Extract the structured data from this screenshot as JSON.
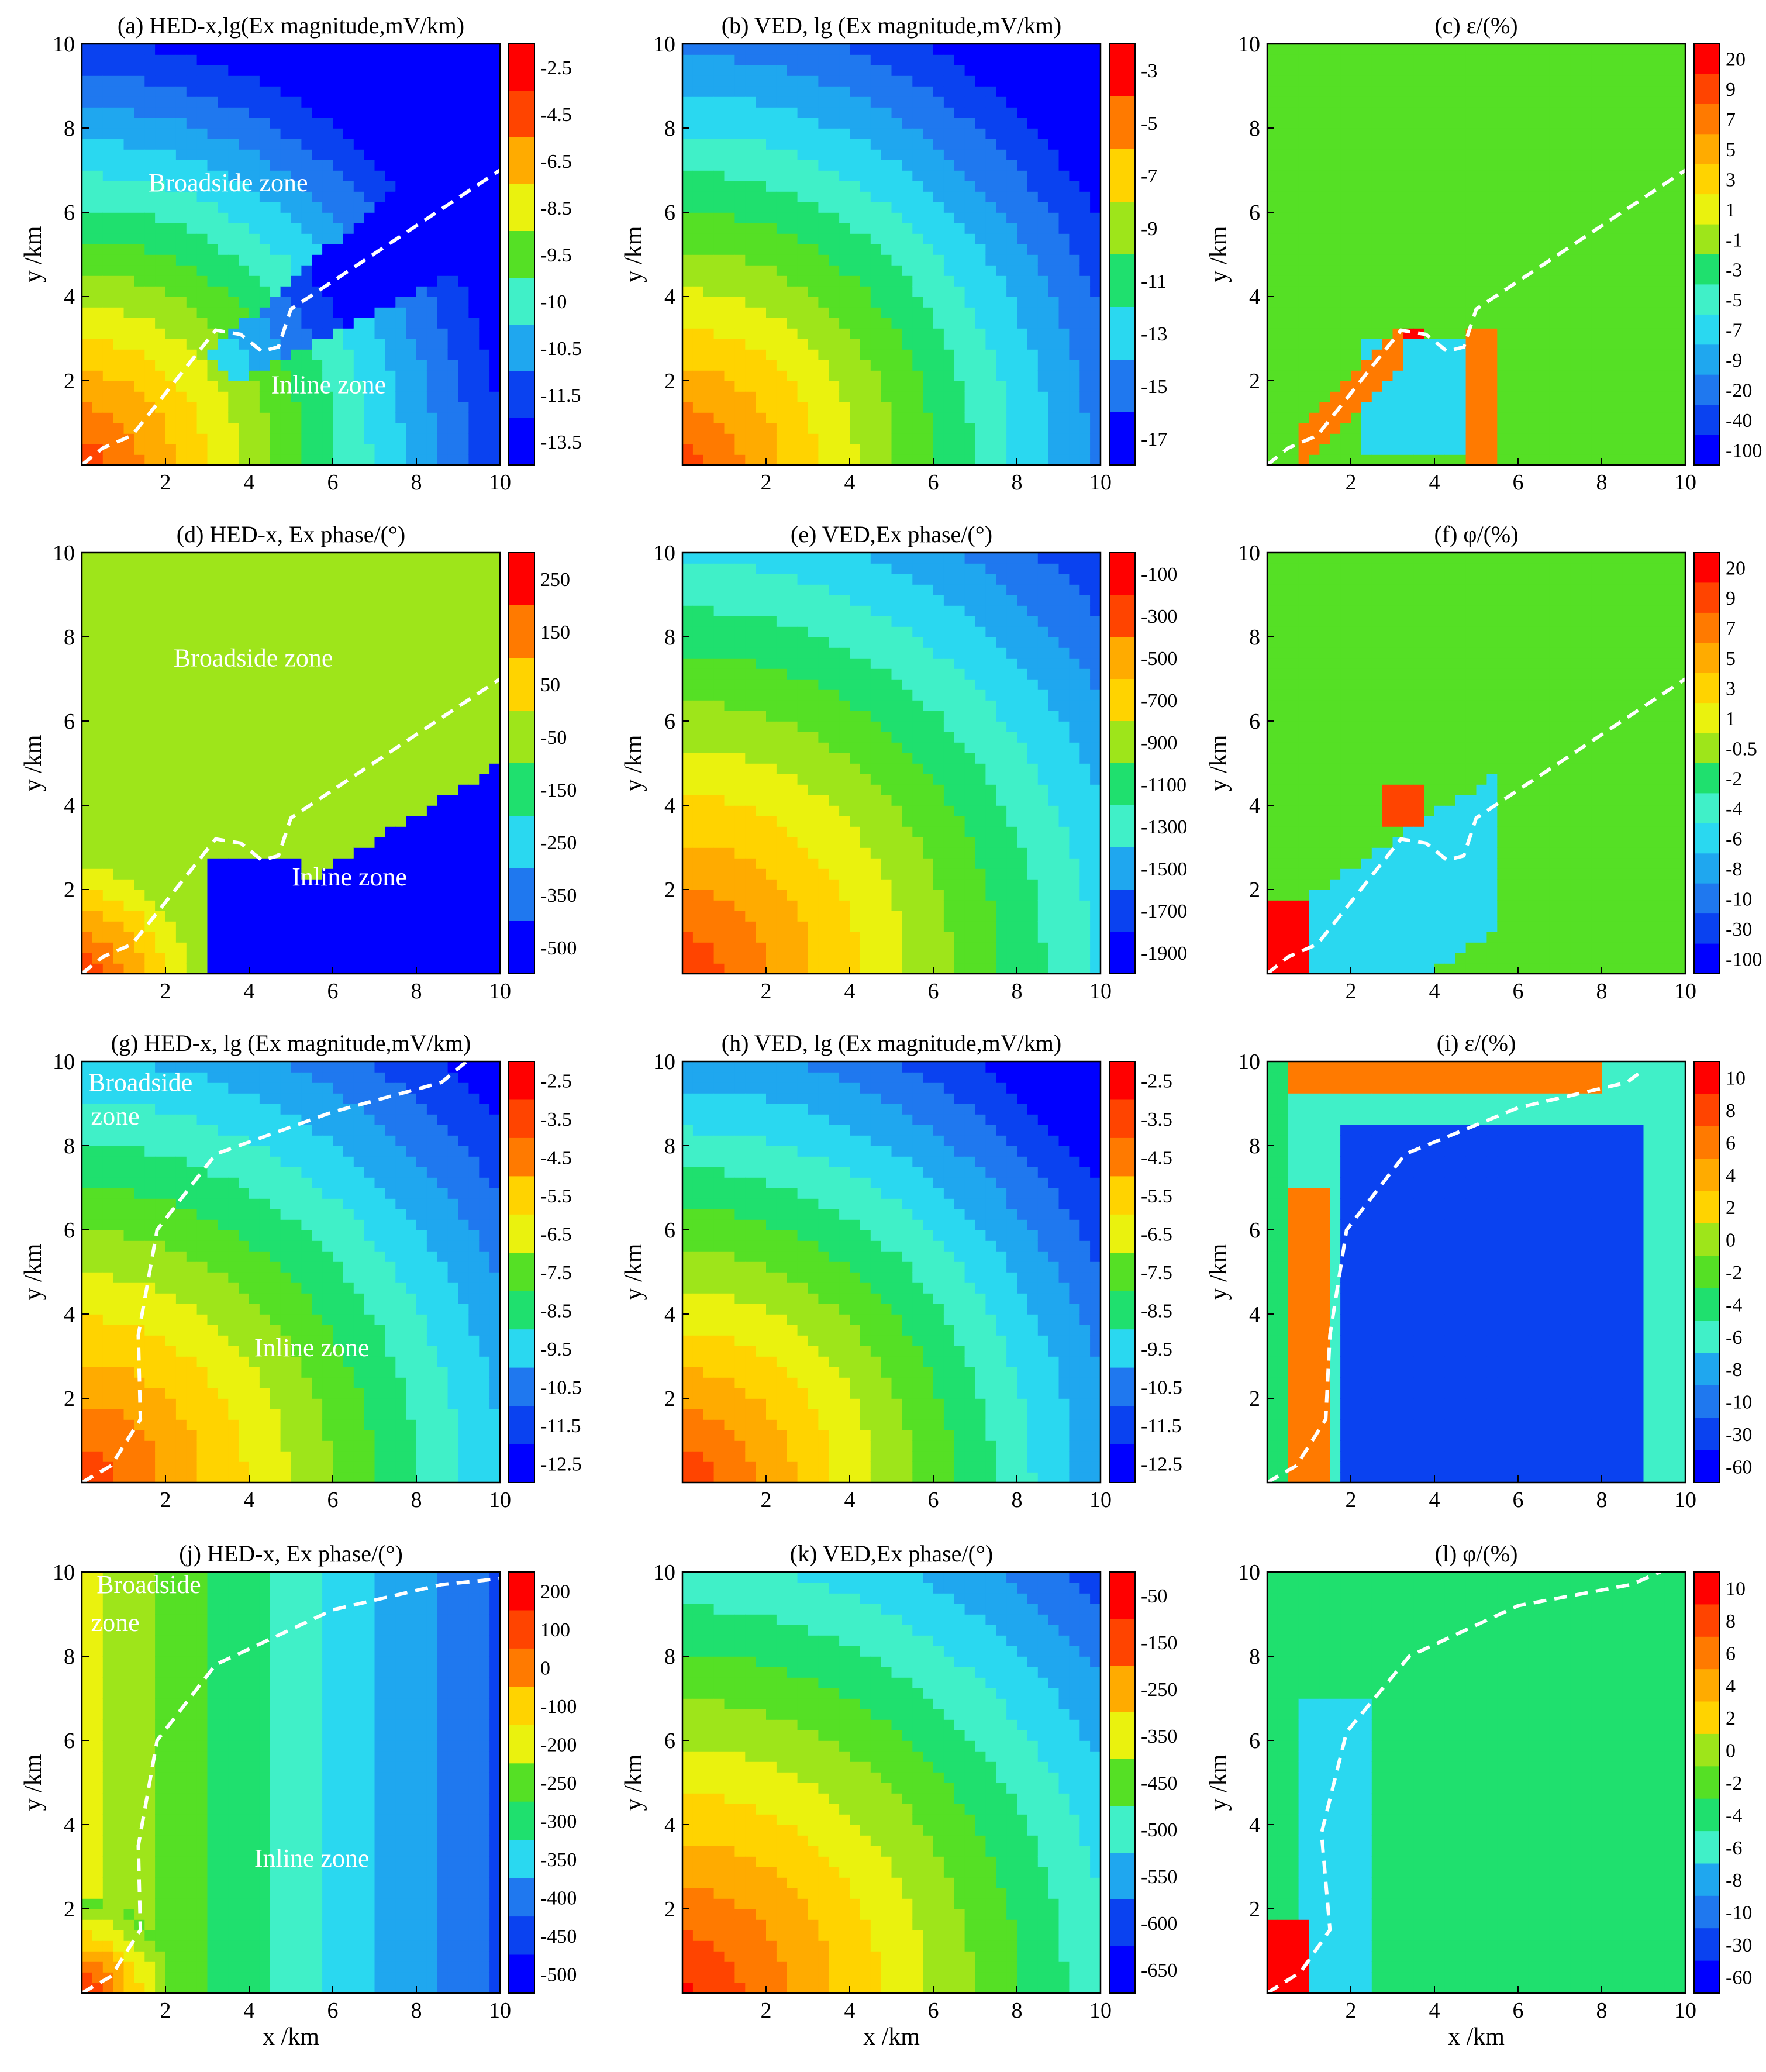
{
  "figure": {
    "x_axis_label": "x /km",
    "y_axis_label": "y /km"
  },
  "chart_data": [
    {
      "id": "a",
      "type": "heatmap",
      "title": "(a) HED-x,lg(Ex magnitude,mV/km)",
      "xlim": [
        0,
        10
      ],
      "ylim": [
        0,
        10
      ],
      "xticks": [
        2,
        4,
        6,
        8,
        10
      ],
      "yticks": [
        2,
        4,
        6,
        8,
        10
      ],
      "x_axis_label": "",
      "y_axis_label": "y /km",
      "colorbar": [
        "-2.5",
        "-4.5",
        "-6.5",
        "-8.5",
        "-9.5",
        "-10",
        "-10.5",
        "-11.5",
        "-13.5"
      ],
      "source": "hed",
      "boundary": [
        [
          0,
          0
        ],
        [
          0.5,
          0.4
        ],
        [
          1.2,
          0.7
        ],
        [
          2,
          1.7
        ],
        [
          3.2,
          3.2
        ],
        [
          3.8,
          3.1
        ],
        [
          4.3,
          2.7
        ],
        [
          4.7,
          2.8
        ],
        [
          5,
          3.7
        ],
        [
          10,
          7.0
        ]
      ],
      "zones": [
        {
          "text": "Broadside zone",
          "x": 3.5,
          "y": 6.5
        },
        {
          "text": "Inline zone",
          "x": 5.9,
          "y": 1.7
        }
      ]
    },
    {
      "id": "b",
      "type": "heatmap",
      "title": "(b) VED, lg (Ex magnitude,mV/km)",
      "xlim": [
        0,
        10
      ],
      "ylim": [
        0,
        10
      ],
      "xticks": [
        2,
        4,
        6,
        8,
        10
      ],
      "yticks": [
        2,
        4,
        6,
        8,
        10
      ],
      "x_axis_label": "",
      "y_axis_label": "y /km",
      "colorbar": [
        "-3",
        "-5",
        "-7",
        "-9",
        "-11",
        "-13",
        "-15",
        "-17"
      ],
      "source": "ved",
      "boundary": [],
      "zones": []
    },
    {
      "id": "c",
      "type": "heatmap",
      "title": "(c) ε/(%)",
      "xlim": [
        0,
        10
      ],
      "ylim": [
        0,
        10
      ],
      "xticks": [
        2,
        4,
        6,
        8,
        10
      ],
      "yticks": [
        2,
        4,
        6,
        8,
        10
      ],
      "x_axis_label": "",
      "y_axis_label": "y /km",
      "colorbar": [
        "20",
        "9",
        "7",
        "5",
        "3",
        "1",
        "-1",
        "-3",
        "-5",
        "-7",
        "-9",
        "-20",
        "-40",
        "-100"
      ],
      "source": "eps",
      "boundary": [
        [
          0,
          0
        ],
        [
          0.5,
          0.4
        ],
        [
          1.2,
          0.7
        ],
        [
          2,
          1.7
        ],
        [
          3.2,
          3.2
        ],
        [
          3.8,
          3.1
        ],
        [
          4.3,
          2.7
        ],
        [
          4.7,
          2.8
        ],
        [
          5,
          3.7
        ],
        [
          10,
          7.0
        ]
      ],
      "zones": []
    },
    {
      "id": "d",
      "type": "heatmap",
      "title": "(d) HED-x, Ex phase/(°)",
      "xlim": [
        0,
        10
      ],
      "ylim": [
        0,
        10
      ],
      "xticks": [
        2,
        4,
        6,
        8,
        10
      ],
      "yticks": [
        2,
        4,
        6,
        8,
        10
      ],
      "x_axis_label": "",
      "y_axis_label": "y /km",
      "colorbar": [
        "250",
        "150",
        "50",
        "-50",
        "-150",
        "-250",
        "-350",
        "-500"
      ],
      "source": "hedphase",
      "boundary": [
        [
          0,
          0
        ],
        [
          0.5,
          0.4
        ],
        [
          1.2,
          0.7
        ],
        [
          2,
          1.7
        ],
        [
          3.2,
          3.2
        ],
        [
          3.8,
          3.1
        ],
        [
          4.3,
          2.7
        ],
        [
          4.7,
          2.8
        ],
        [
          5,
          3.7
        ],
        [
          10,
          7.0
        ]
      ],
      "zones": [
        {
          "text": "Broadside zone",
          "x": 4.1,
          "y": 7.3
        },
        {
          "text": "Inline zone",
          "x": 6.4,
          "y": 2.1
        }
      ]
    },
    {
      "id": "e",
      "type": "heatmap",
      "title": "(e) VED,Ex phase/(°)",
      "xlim": [
        0,
        10
      ],
      "ylim": [
        0,
        10
      ],
      "xticks": [
        2,
        4,
        6,
        8,
        10
      ],
      "yticks": [
        2,
        4,
        6,
        8,
        10
      ],
      "x_axis_label": "",
      "y_axis_label": "y /km",
      "colorbar": [
        "-100",
        "-300",
        "-500",
        "-700",
        "-900",
        "-1100",
        "-1300",
        "-1500",
        "-1700",
        "-1900"
      ],
      "source": "vedphase",
      "boundary": [],
      "zones": []
    },
    {
      "id": "f",
      "type": "heatmap",
      "title": "(f) φ/(%)",
      "xlim": [
        0,
        10
      ],
      "ylim": [
        0,
        10
      ],
      "xticks": [
        2,
        4,
        6,
        8,
        10
      ],
      "yticks": [
        2,
        4,
        6,
        8,
        10
      ],
      "x_axis_label": "",
      "y_axis_label": "y /km",
      "colorbar": [
        "20",
        "9",
        "7",
        "5",
        "3",
        "1",
        "-0.5",
        "-2",
        "-4",
        "-6",
        "-8",
        "-10",
        "-30",
        "-100"
      ],
      "source": "phi",
      "boundary": [
        [
          0,
          0
        ],
        [
          0.5,
          0.4
        ],
        [
          1.2,
          0.7
        ],
        [
          2,
          1.7
        ],
        [
          3.2,
          3.2
        ],
        [
          3.8,
          3.1
        ],
        [
          4.3,
          2.7
        ],
        [
          4.7,
          2.8
        ],
        [
          5,
          3.7
        ],
        [
          10,
          7.0
        ]
      ],
      "zones": []
    },
    {
      "id": "g",
      "type": "heatmap",
      "title": "(g) HED-x, lg (Ex magnitude,mV/km)",
      "xlim": [
        0,
        10
      ],
      "ylim": [
        0,
        10
      ],
      "xticks": [
        2,
        4,
        6,
        8,
        10
      ],
      "yticks": [
        2,
        4,
        6,
        8,
        10
      ],
      "x_axis_label": "",
      "y_axis_label": "y /km",
      "colorbar": [
        "-2.5",
        "-3.5",
        "-4.5",
        "-5.5",
        "-6.5",
        "-7.5",
        "-8.5",
        "-9.5",
        "-10.5",
        "-11.5",
        "-12.5"
      ],
      "source": "hed2",
      "boundary": [
        [
          0,
          0
        ],
        [
          0.7,
          0.4
        ],
        [
          1.4,
          1.5
        ],
        [
          1.35,
          3.5
        ],
        [
          1.8,
          6.0
        ],
        [
          3.2,
          7.8
        ],
        [
          6,
          8.8
        ],
        [
          8.6,
          9.5
        ],
        [
          9.2,
          10
        ]
      ],
      "zones": [
        {
          "text": "Broadside",
          "x": 1.4,
          "y": 9.3
        },
        {
          "text": "zone",
          "x": 0.8,
          "y": 8.5
        },
        {
          "text": "Inline zone",
          "x": 5.5,
          "y": 3.0
        }
      ]
    },
    {
      "id": "h",
      "type": "heatmap",
      "title": "(h) VED, lg (Ex magnitude,mV/km)",
      "xlim": [
        0,
        10
      ],
      "ylim": [
        0,
        10
      ],
      "xticks": [
        2,
        4,
        6,
        8,
        10
      ],
      "yticks": [
        2,
        4,
        6,
        8,
        10
      ],
      "x_axis_label": "",
      "y_axis_label": "y /km",
      "colorbar": [
        "-2.5",
        "-3.5",
        "-4.5",
        "-5.5",
        "-6.5",
        "-7.5",
        "-8.5",
        "-9.5",
        "-10.5",
        "-11.5",
        "-12.5"
      ],
      "source": "ved2",
      "boundary": [],
      "zones": []
    },
    {
      "id": "i",
      "type": "heatmap",
      "title": "(i) ε/(%)",
      "xlim": [
        0,
        10
      ],
      "ylim": [
        0,
        10
      ],
      "xticks": [
        2,
        4,
        6,
        8,
        10
      ],
      "yticks": [
        2,
        4,
        6,
        8,
        10
      ],
      "x_axis_label": "",
      "y_axis_label": "y /km",
      "colorbar": [
        "10",
        "8",
        "6",
        "4",
        "2",
        "0",
        "-2",
        "-4",
        "-6",
        "-8",
        "-10",
        "-30",
        "-60"
      ],
      "source": "eps2",
      "boundary": [
        [
          0,
          0
        ],
        [
          0.7,
          0.4
        ],
        [
          1.4,
          1.5
        ],
        [
          1.5,
          3.5
        ],
        [
          1.9,
          6.0
        ],
        [
          3.3,
          7.8
        ],
        [
          6,
          8.9
        ],
        [
          8.6,
          9.5
        ],
        [
          9.0,
          9.8
        ]
      ],
      "zones": []
    },
    {
      "id": "j",
      "type": "heatmap",
      "title": "(j) HED-x, Ex phase/(°)",
      "xlim": [
        0,
        10
      ],
      "ylim": [
        0,
        10
      ],
      "xticks": [
        2,
        4,
        6,
        8,
        10
      ],
      "yticks": [
        2,
        4,
        6,
        8,
        10
      ],
      "x_axis_label": "x /km",
      "y_axis_label": "y /km",
      "colorbar": [
        "200",
        "100",
        "0",
        "-100",
        "-200",
        "-250",
        "-300",
        "-350",
        "-400",
        "-450",
        "-500"
      ],
      "source": "hedphase2",
      "boundary": [
        [
          0,
          0
        ],
        [
          0.7,
          0.4
        ],
        [
          1.4,
          1.5
        ],
        [
          1.35,
          3.5
        ],
        [
          1.8,
          6.0
        ],
        [
          3.2,
          7.8
        ],
        [
          6,
          9.1
        ],
        [
          8.6,
          9.7
        ],
        [
          9.6,
          9.8
        ],
        [
          10,
          9.85
        ]
      ],
      "zones": [
        {
          "text": "Broadside",
          "x": 1.6,
          "y": 9.5
        },
        {
          "text": "zone",
          "x": 0.8,
          "y": 8.6
        },
        {
          "text": "Inline zone",
          "x": 5.5,
          "y": 3.0
        }
      ]
    },
    {
      "id": "k",
      "type": "heatmap",
      "title": "(k) VED,Ex phase/(°)",
      "xlim": [
        0,
        10
      ],
      "ylim": [
        0,
        10
      ],
      "xticks": [
        2,
        4,
        6,
        8,
        10
      ],
      "yticks": [
        2,
        4,
        6,
        8,
        10
      ],
      "x_axis_label": "x /km",
      "y_axis_label": "y /km",
      "colorbar": [
        "-50",
        "-150",
        "-250",
        "-350",
        "-450",
        "-500",
        "-550",
        "-600",
        "-650"
      ],
      "source": "vedphase2",
      "boundary": [],
      "zones": []
    },
    {
      "id": "l",
      "type": "heatmap",
      "title": "(l) φ/(%)",
      "xlim": [
        0,
        10
      ],
      "ylim": [
        0,
        10
      ],
      "xticks": [
        2,
        4,
        6,
        8,
        10
      ],
      "yticks": [
        2,
        4,
        6,
        8,
        10
      ],
      "x_axis_label": "x /km",
      "y_axis_label": "y /km",
      "colorbar": [
        "10",
        "8",
        "6",
        "4",
        "2",
        "0",
        "-2",
        "-4",
        "-6",
        "-8",
        "-10",
        "-30",
        "-60"
      ],
      "source": "phi2",
      "boundary": [
        [
          0,
          0
        ],
        [
          0.8,
          0.5
        ],
        [
          1.5,
          1.5
        ],
        [
          1.3,
          3.8
        ],
        [
          1.9,
          6.2
        ],
        [
          3.4,
          8.0
        ],
        [
          6,
          9.2
        ],
        [
          8.7,
          9.7
        ],
        [
          9.4,
          10
        ]
      ],
      "zones": []
    }
  ]
}
